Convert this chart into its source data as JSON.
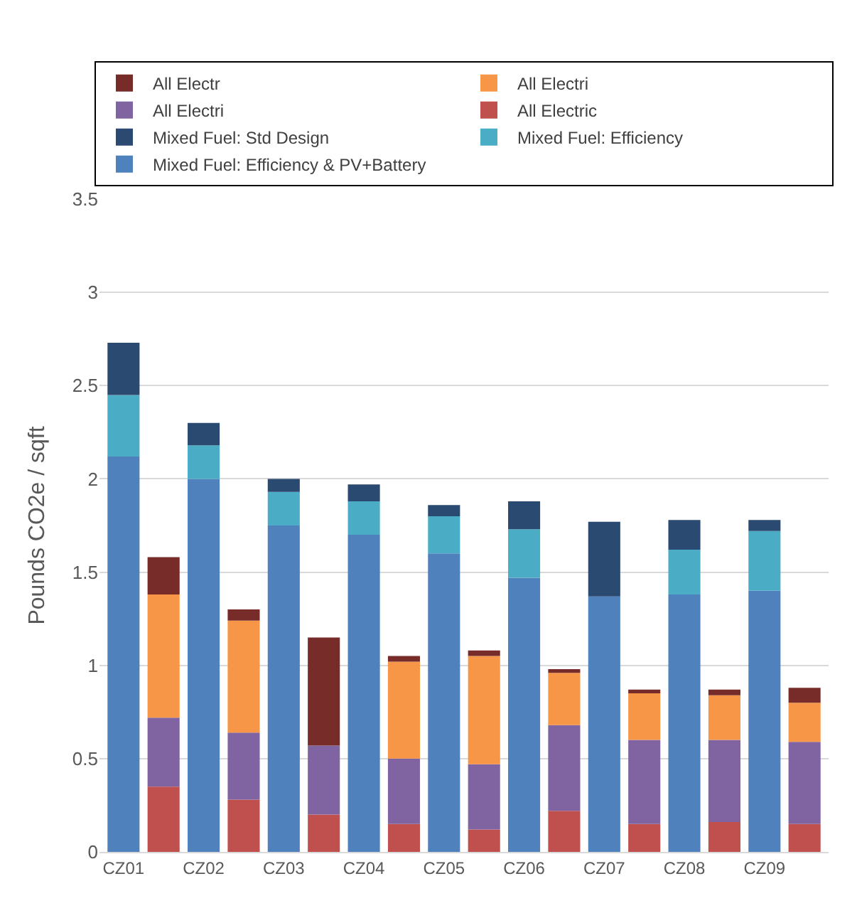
{
  "chart_data": {
    "type": "bar",
    "stacked": true,
    "ylabel": "Pounds CO2e / sqft",
    "categories": [
      "CZ01",
      null,
      "CZ02",
      null,
      "CZ03",
      null,
      "CZ04",
      null,
      "CZ05",
      null,
      "CZ06",
      null,
      "CZ07",
      null,
      "CZ08",
      null,
      "CZ09",
      null
    ],
    "series": [
      {
        "name": "Mixed Fuel: Efficiency & PV+Battery",
        "color": "#4f81bd",
        "values": [
          2.12,
          null,
          2.0,
          null,
          1.75,
          null,
          1.7,
          null,
          1.6,
          null,
          1.47,
          null,
          1.37,
          null,
          1.38,
          null,
          1.4,
          null
        ]
      },
      {
        "name": "Mixed Fuel: Efficiency",
        "color": "#4bacc6",
        "values": [
          0.33,
          null,
          0.18,
          null,
          0.18,
          null,
          0.18,
          null,
          0.2,
          null,
          0.26,
          null,
          0,
          null,
          0.24,
          null,
          0.32,
          null
        ]
      },
      {
        "name": "Mixed Fuel: Std Design",
        "color": "#2a4a72",
        "values": [
          0.28,
          null,
          0.12,
          null,
          0.07,
          null,
          0.09,
          null,
          0.06,
          null,
          0.15,
          null,
          0.4,
          null,
          0.16,
          null,
          0.06,
          null
        ]
      },
      {
        "name": "All Electric",
        "color": "#c0504d",
        "values": [
          null,
          0.35,
          null,
          0.28,
          null,
          0.2,
          null,
          0.15,
          null,
          0.12,
          null,
          0.22,
          null,
          0.15,
          null,
          0.16,
          null,
          0.15
        ]
      },
      {
        "name": "All Electri",
        "color": "#8064a2",
        "values": [
          null,
          0.37,
          null,
          0.36,
          null,
          0.37,
          null,
          0.35,
          null,
          0.35,
          null,
          0.46,
          null,
          0.45,
          null,
          0.44,
          null,
          0.44
        ]
      },
      {
        "name": "All Electri",
        "color": "#f79646",
        "values": [
          null,
          0.66,
          null,
          0.6,
          null,
          0,
          null,
          0.52,
          null,
          0.58,
          null,
          0.28,
          null,
          0.25,
          null,
          0.24,
          null,
          0.21
        ]
      },
      {
        "name": "All Electr",
        "color": "#772c2a",
        "values": [
          null,
          0.2,
          null,
          0.06,
          null,
          0.58,
          null,
          0.03,
          null,
          0.03,
          null,
          0.02,
          null,
          0.02,
          null,
          0.03,
          null,
          0.08
        ]
      }
    ],
    "ylim": [
      0,
      3.5
    ],
    "yticks": [
      0,
      0.5,
      1,
      1.5,
      2,
      2.5,
      3,
      3.5
    ],
    "grid": "y",
    "legend": "top"
  }
}
